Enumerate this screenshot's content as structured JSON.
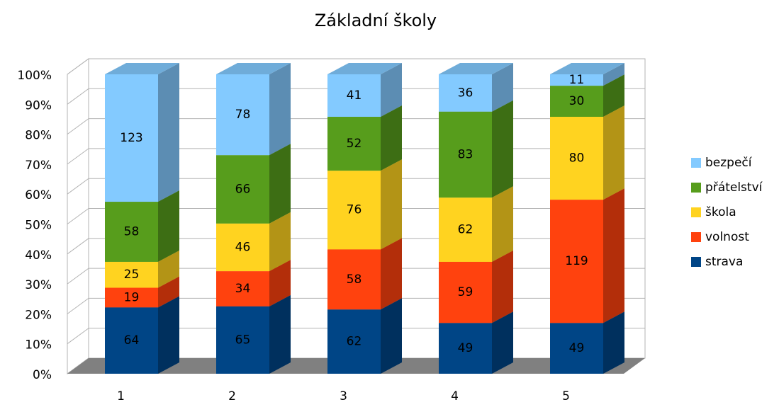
{
  "chart_data": {
    "type": "stacked-bar-3d",
    "title": "Základní školy",
    "stacking": "percent",
    "categories": [
      "1",
      "2",
      "3",
      "4",
      "5"
    ],
    "series": [
      {
        "name": "strava",
        "color": "#004586",
        "values": [
          64,
          65,
          62,
          49,
          49
        ]
      },
      {
        "name": "volnost",
        "color": "#ff420e",
        "values": [
          19,
          34,
          58,
          59,
          119
        ]
      },
      {
        "name": "škola",
        "color": "#ffd320",
        "values": [
          25,
          46,
          76,
          62,
          80
        ]
      },
      {
        "name": "přátelství",
        "color": "#579d1c",
        "values": [
          58,
          66,
          52,
          83,
          30
        ]
      },
      {
        "name": "bezpečí",
        "color": "#83caff",
        "values": [
          123,
          78,
          41,
          36,
          11
        ]
      }
    ],
    "ylim": [
      0,
      100
    ],
    "yticks": [
      {
        "value": 0,
        "label": "0%"
      },
      {
        "value": 10,
        "label": "10%"
      },
      {
        "value": 20,
        "label": "20%"
      },
      {
        "value": 30,
        "label": "30%"
      },
      {
        "value": 40,
        "label": "40%"
      },
      {
        "value": 50,
        "label": "50%"
      },
      {
        "value": 60,
        "label": "60%"
      },
      {
        "value": 70,
        "label": "70%"
      },
      {
        "value": 80,
        "label": "80%"
      },
      {
        "value": 90,
        "label": "90%"
      },
      {
        "value": 100,
        "label": "100%"
      }
    ],
    "grid": true,
    "legend": "right"
  }
}
